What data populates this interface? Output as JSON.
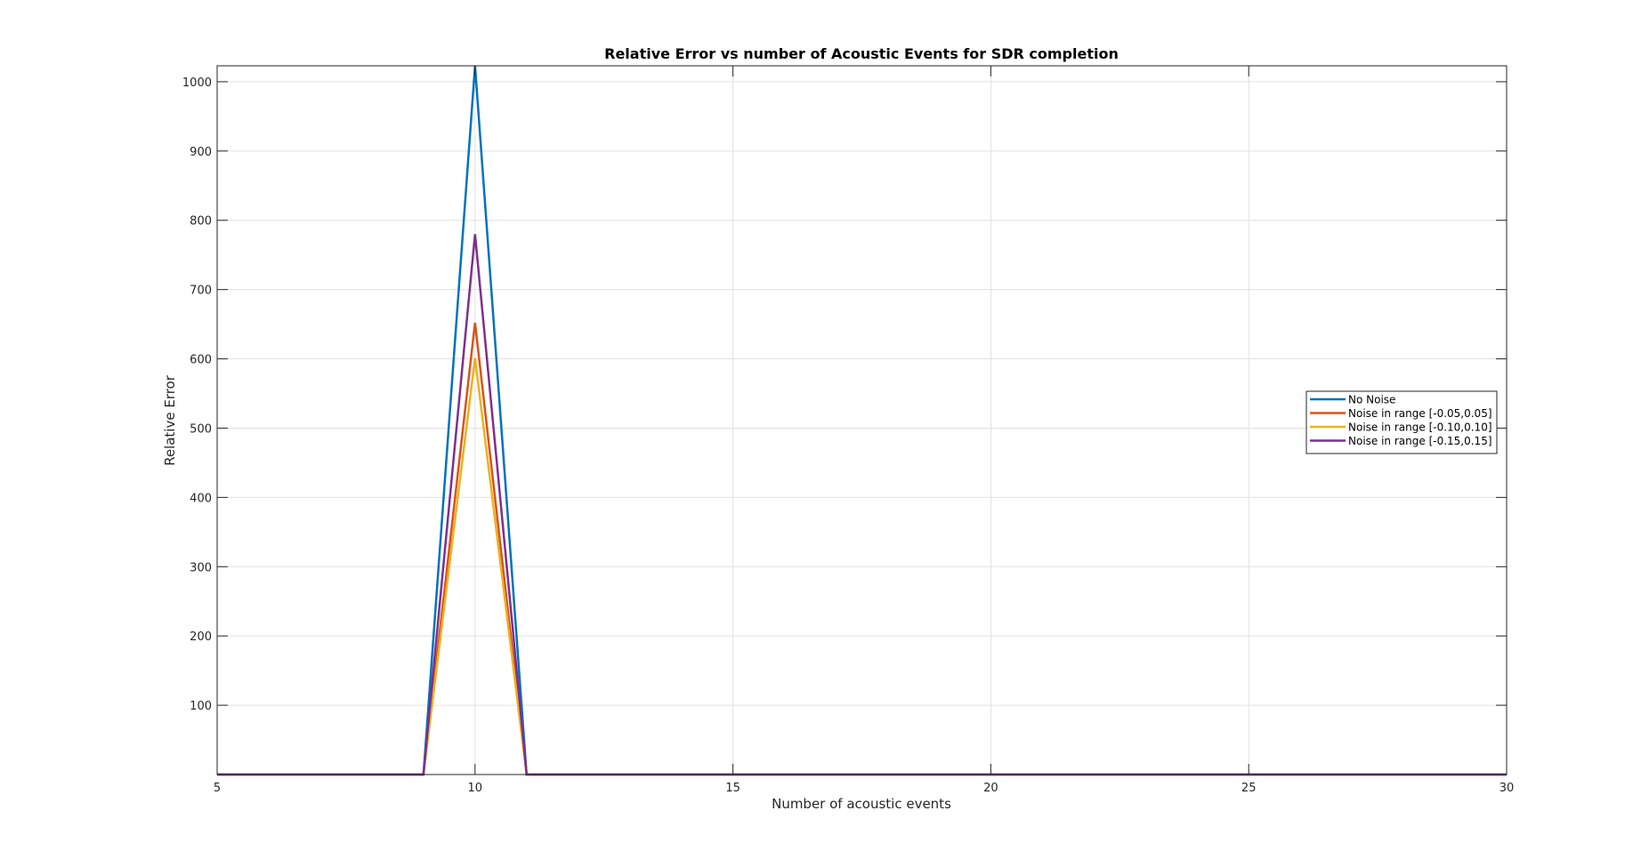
{
  "chart_data": {
    "type": "line",
    "title": "Relative Error vs number of Acoustic Events for SDR completion",
    "xlabel": "Number of acoustic events",
    "ylabel": "Relative Error",
    "xlim": [
      5,
      30
    ],
    "ylim": [
      0,
      1023
    ],
    "xticks": [
      5,
      10,
      15,
      20,
      25,
      30
    ],
    "yticks": [
      100,
      200,
      300,
      400,
      500,
      600,
      700,
      800,
      900,
      1000
    ],
    "grid": true,
    "legend_position": "right",
    "x": [
      5,
      6,
      7,
      8,
      9,
      10,
      11,
      12,
      13,
      14,
      15,
      16,
      17,
      18,
      19,
      20,
      21,
      22,
      23,
      24,
      25,
      26,
      27,
      28,
      29,
      30
    ],
    "series": [
      {
        "name": "No Noise",
        "color": "#0072BD",
        "values": [
          0,
          0,
          0,
          0,
          0,
          1023,
          0,
          0,
          0,
          0,
          0,
          0,
          0,
          0,
          0,
          0,
          0,
          0,
          0,
          0,
          0,
          0,
          0,
          0,
          0,
          0
        ]
      },
      {
        "name": "Noise in range [-0.05,0.05]",
        "color": "#D95319",
        "values": [
          0,
          0,
          0,
          0,
          0,
          652,
          0,
          0,
          0,
          0,
          0,
          0,
          0,
          0,
          0,
          0,
          0,
          0,
          0,
          0,
          0,
          0,
          0,
          0,
          0,
          0
        ]
      },
      {
        "name": "Noise in range [-0.10,0.10]",
        "color": "#EDB120",
        "values": [
          0,
          0,
          0,
          0,
          0,
          601,
          0,
          0,
          0,
          0,
          0,
          0,
          0,
          0,
          0,
          0,
          0,
          0,
          0,
          0,
          0,
          0,
          0,
          0,
          0,
          0
        ]
      },
      {
        "name": "Noise in range [-0.15,0.15]",
        "color": "#7E2F8E",
        "values": [
          0,
          0,
          0,
          0,
          0,
          780,
          0,
          0,
          0,
          0,
          0,
          0,
          0,
          0,
          0,
          0,
          0,
          0,
          0,
          0,
          0,
          0,
          0,
          0,
          0,
          0
        ]
      }
    ]
  }
}
